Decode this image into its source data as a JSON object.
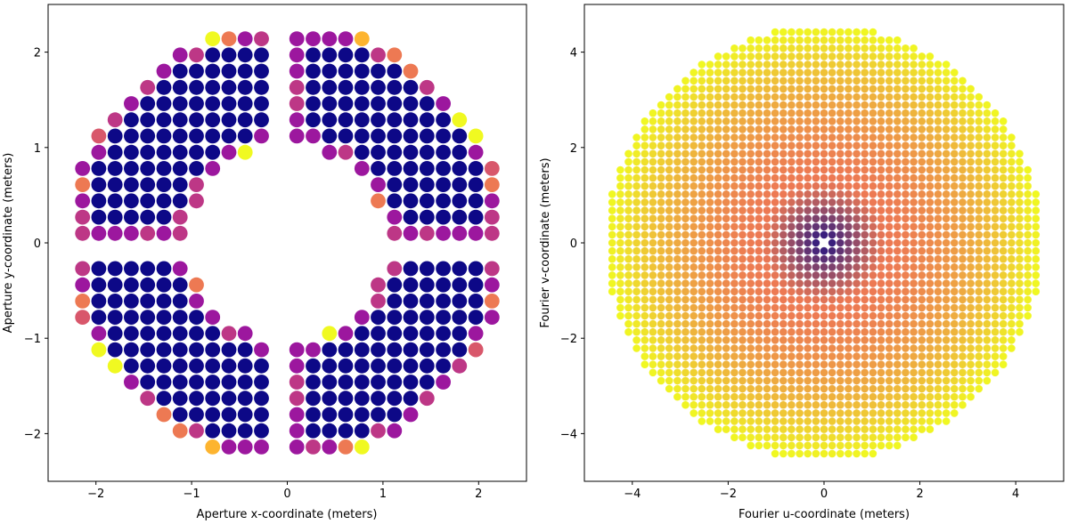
{
  "chart_data": [
    {
      "type": "scatter",
      "xlabel": "Aperture x-coordinate (meters)",
      "ylabel": "Aperture y-coordinate (meters)",
      "xlim": [
        -2.5,
        2.5
      ],
      "ylim": [
        -2.5,
        2.5
      ],
      "x_ticks": [
        -2,
        -1,
        0,
        1,
        2
      ],
      "y_ticks": [
        -2,
        -1,
        0,
        1,
        2
      ],
      "x_tick_labels": [
        "−2",
        "−1",
        "0",
        "1",
        "2"
      ],
      "y_tick_labels": [
        "−2",
        "−1",
        "0",
        "1",
        "2"
      ],
      "colormap": "plasma",
      "grid": false,
      "aperture": {
        "outer_radius_m": 2.3,
        "inner_radius_m": 1.0,
        "spider_half_width_m": 0.1,
        "grid_spacing_m": 0.17,
        "center_color": "#0d0887",
        "edge_colors": [
          "#9c179e",
          "#bd3786",
          "#d8576b",
          "#ed7953",
          "#fdb42f",
          "#f0f921"
        ]
      }
    },
    {
      "type": "scatter",
      "xlabel": "Fourier u-coordinate (meters)",
      "ylabel": "Fourier v-coordinate (meters)",
      "xlim": [
        -5.0,
        5.0
      ],
      "ylim": [
        -5.0,
        5.0
      ],
      "x_ticks": [
        -4,
        -2,
        0,
        2,
        4
      ],
      "y_ticks": [
        -4,
        -2,
        0,
        2,
        4
      ],
      "x_tick_labels": [
        "−4",
        "−2",
        "0",
        "2",
        "4"
      ],
      "y_tick_labels": [
        "−4",
        "−2",
        "0",
        "2",
        "4"
      ],
      "colormap": "plasma",
      "grid": false,
      "fourier": {
        "max_radius_m": 4.55,
        "grid_spacing_m": 0.17,
        "center_color": "#0d0887",
        "mid_color": "#ed7953",
        "edge_color": "#f0f921"
      }
    }
  ]
}
